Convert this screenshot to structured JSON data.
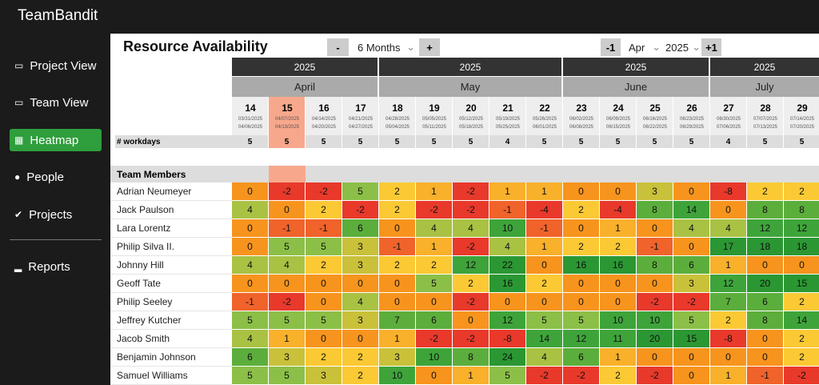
{
  "app": {
    "name": "TeamBandit",
    "nav": [
      "Project View",
      "Team View",
      "Heatmap",
      "People",
      "Projects",
      "Reports"
    ],
    "active_nav": 2
  },
  "header": {
    "title": "Resource Availability",
    "range_minus": "-",
    "range": "6 Months",
    "range_plus": "+",
    "prev": "-1",
    "month": "Apr",
    "year": "2025",
    "next": "+1"
  },
  "table": {
    "workdays_label": "# workdays",
    "members_label": "Team Members",
    "groups": [
      {
        "year": "2025",
        "month": "April",
        "weeks": [
          {
            "week": 14,
            "start": "03/31/2025",
            "end": "04/06/2025",
            "workdays": 5
          },
          {
            "week": 15,
            "start": "04/07/2025",
            "end": "04/13/2025",
            "workdays": 5,
            "highlight": true
          },
          {
            "week": 16,
            "start": "04/14/2025",
            "end": "04/20/2025",
            "workdays": 5
          },
          {
            "week": 17,
            "start": "04/21/2025",
            "end": "04/27/2025",
            "workdays": 5
          }
        ]
      },
      {
        "year": "2025",
        "month": "May",
        "weeks": [
          {
            "week": 18,
            "start": "04/28/2025",
            "end": "05/04/2025",
            "workdays": 5
          },
          {
            "week": 19,
            "start": "05/05/2025",
            "end": "05/11/2025",
            "workdays": 5
          },
          {
            "week": 20,
            "start": "05/12/2025",
            "end": "05/18/2025",
            "workdays": 5
          },
          {
            "week": 21,
            "start": "05/19/2025",
            "end": "05/25/2025",
            "workdays": 4
          },
          {
            "week": 22,
            "start": "05/26/2025",
            "end": "06/01/2025",
            "workdays": 5
          }
        ]
      },
      {
        "year": "2025",
        "month": "June",
        "weeks": [
          {
            "week": 23,
            "start": "06/02/2025",
            "end": "06/08/2025",
            "workdays": 5
          },
          {
            "week": 24,
            "start": "06/09/2025",
            "end": "06/15/2025",
            "workdays": 5
          },
          {
            "week": 25,
            "start": "06/16/2025",
            "end": "06/22/2025",
            "workdays": 5
          },
          {
            "week": 26,
            "start": "06/23/2025",
            "end": "06/29/2025",
            "workdays": 5
          }
        ]
      },
      {
        "year": "2025",
        "month": "July",
        "weeks": [
          {
            "week": 27,
            "start": "06/30/2025",
            "end": "07/06/2025",
            "workdays": 4
          },
          {
            "week": 28,
            "start": "07/07/2025",
            "end": "07/13/2025",
            "workdays": 5
          },
          {
            "week": 29,
            "start": "07/14/2025",
            "end": "07/20/2025",
            "workdays": 5
          }
        ]
      }
    ],
    "rows": [
      {
        "name": "Adrian Neumeyer",
        "values": [
          0,
          -2,
          -2,
          5,
          2,
          1,
          -2,
          1,
          1,
          0,
          0,
          3,
          0,
          -8,
          2,
          2
        ]
      },
      {
        "name": "Jack Paulson",
        "values": [
          4,
          0,
          2,
          -2,
          2,
          -2,
          -2,
          -1,
          -4,
          2,
          -4,
          8,
          14,
          0,
          8,
          8
        ]
      },
      {
        "name": "Lara Lorentz",
        "values": [
          0,
          -1,
          -1,
          6,
          0,
          4,
          4,
          10,
          -1,
          0,
          1,
          0,
          4,
          4,
          12,
          12
        ]
      },
      {
        "name": "Philip Silva II.",
        "values": [
          0,
          5,
          5,
          3,
          -1,
          1,
          -2,
          4,
          1,
          2,
          2,
          -1,
          0,
          17,
          18,
          18
        ]
      },
      {
        "name": "Johnny Hill",
        "values": [
          4,
          4,
          2,
          3,
          2,
          2,
          12,
          22,
          0,
          16,
          16,
          8,
          6,
          1,
          0,
          0
        ]
      },
      {
        "name": "Geoff Tate",
        "values": [
          0,
          0,
          0,
          0,
          0,
          5,
          2,
          16,
          2,
          0,
          0,
          0,
          3,
          12,
          20,
          15
        ]
      },
      {
        "name": "Philip Seeley",
        "values": [
          -1,
          -2,
          0,
          4,
          0,
          0,
          -2,
          0,
          0,
          0,
          0,
          -2,
          -2,
          7,
          6,
          2
        ]
      },
      {
        "name": "Jeffrey Kutcher",
        "values": [
          5,
          5,
          5,
          3,
          7,
          6,
          0,
          12,
          5,
          5,
          10,
          10,
          5,
          2,
          8,
          14
        ]
      },
      {
        "name": "Jacob Smith",
        "values": [
          4,
          1,
          0,
          0,
          1,
          -2,
          -2,
          -8,
          14,
          12,
          11,
          20,
          15,
          -8,
          0,
          2
        ]
      },
      {
        "name": "Benjamin Johnson",
        "values": [
          6,
          3,
          2,
          2,
          3,
          10,
          8,
          24,
          4,
          6,
          1,
          0,
          0,
          0,
          0,
          2
        ]
      },
      {
        "name": "Samuel Williams",
        "values": [
          5,
          5,
          3,
          2,
          10,
          0,
          1,
          5,
          -2,
          -2,
          2,
          -2,
          0,
          1,
          -1,
          -2
        ]
      }
    ]
  }
}
